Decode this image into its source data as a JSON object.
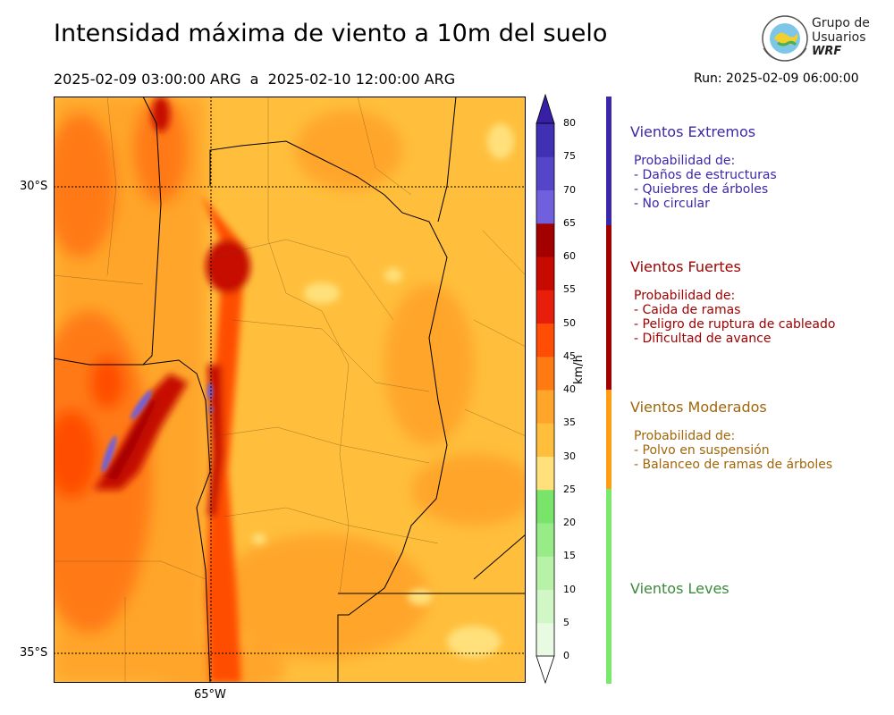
{
  "header": {
    "title": "Intensidad máxima de viento a 10m del suelo",
    "period": "2025-02-09 03:00:00 ARG  a  2025-02-10 12:00:00 ARG",
    "run": "Run: 2025-02-09 06:00:00"
  },
  "logo": {
    "line1": "Grupo de",
    "line2": "Usuarios",
    "line3": "WRF"
  },
  "map": {
    "lat_labels": [
      "30°S",
      "35°S"
    ],
    "lon_labels": [
      "65°W"
    ]
  },
  "colorbar": {
    "unit": "km/h",
    "ticks": [
      "0",
      "5",
      "10",
      "15",
      "20",
      "25",
      "30",
      "35",
      "40",
      "45",
      "50",
      "55",
      "60",
      "65",
      "70",
      "75",
      "80"
    ],
    "colors": [
      "#e8fbe2",
      "#d2f7c7",
      "#b7f2a8",
      "#98ec88",
      "#78e56a",
      "#ffe07a",
      "#ffbf3c",
      "#ffa52a",
      "#ff7a12",
      "#ff4d05",
      "#e61e0a",
      "#c60a00",
      "#a30000",
      "#7060dd",
      "#5545c9",
      "#4030b3"
    ],
    "extend_high_color": "#3820a6"
  },
  "categories": [
    {
      "title": "Vientos Extremos",
      "desc": "Probabilidad de:\n- Daños de estructuras\n- Quiebres de árboles\n- No circular",
      "color": "#3a28a8"
    },
    {
      "title": "Vientos Fuertes",
      "desc": "Probabilidad de:\n- Caida de ramas\n- Peligro de ruptura de cableado\n- Dificultad de avance",
      "color": "#a00000"
    },
    {
      "title": "Vientos Moderados",
      "desc": "Probabilidad de:\n- Polvo en suspensión\n- Balanceo de ramas de árboles",
      "color": "#a0660a",
      "bar_color": "#ff9c12"
    },
    {
      "title": "Vientos Leves",
      "desc": "",
      "color": "#3c8a3c",
      "bar_color": "#7ae86a"
    }
  ]
}
